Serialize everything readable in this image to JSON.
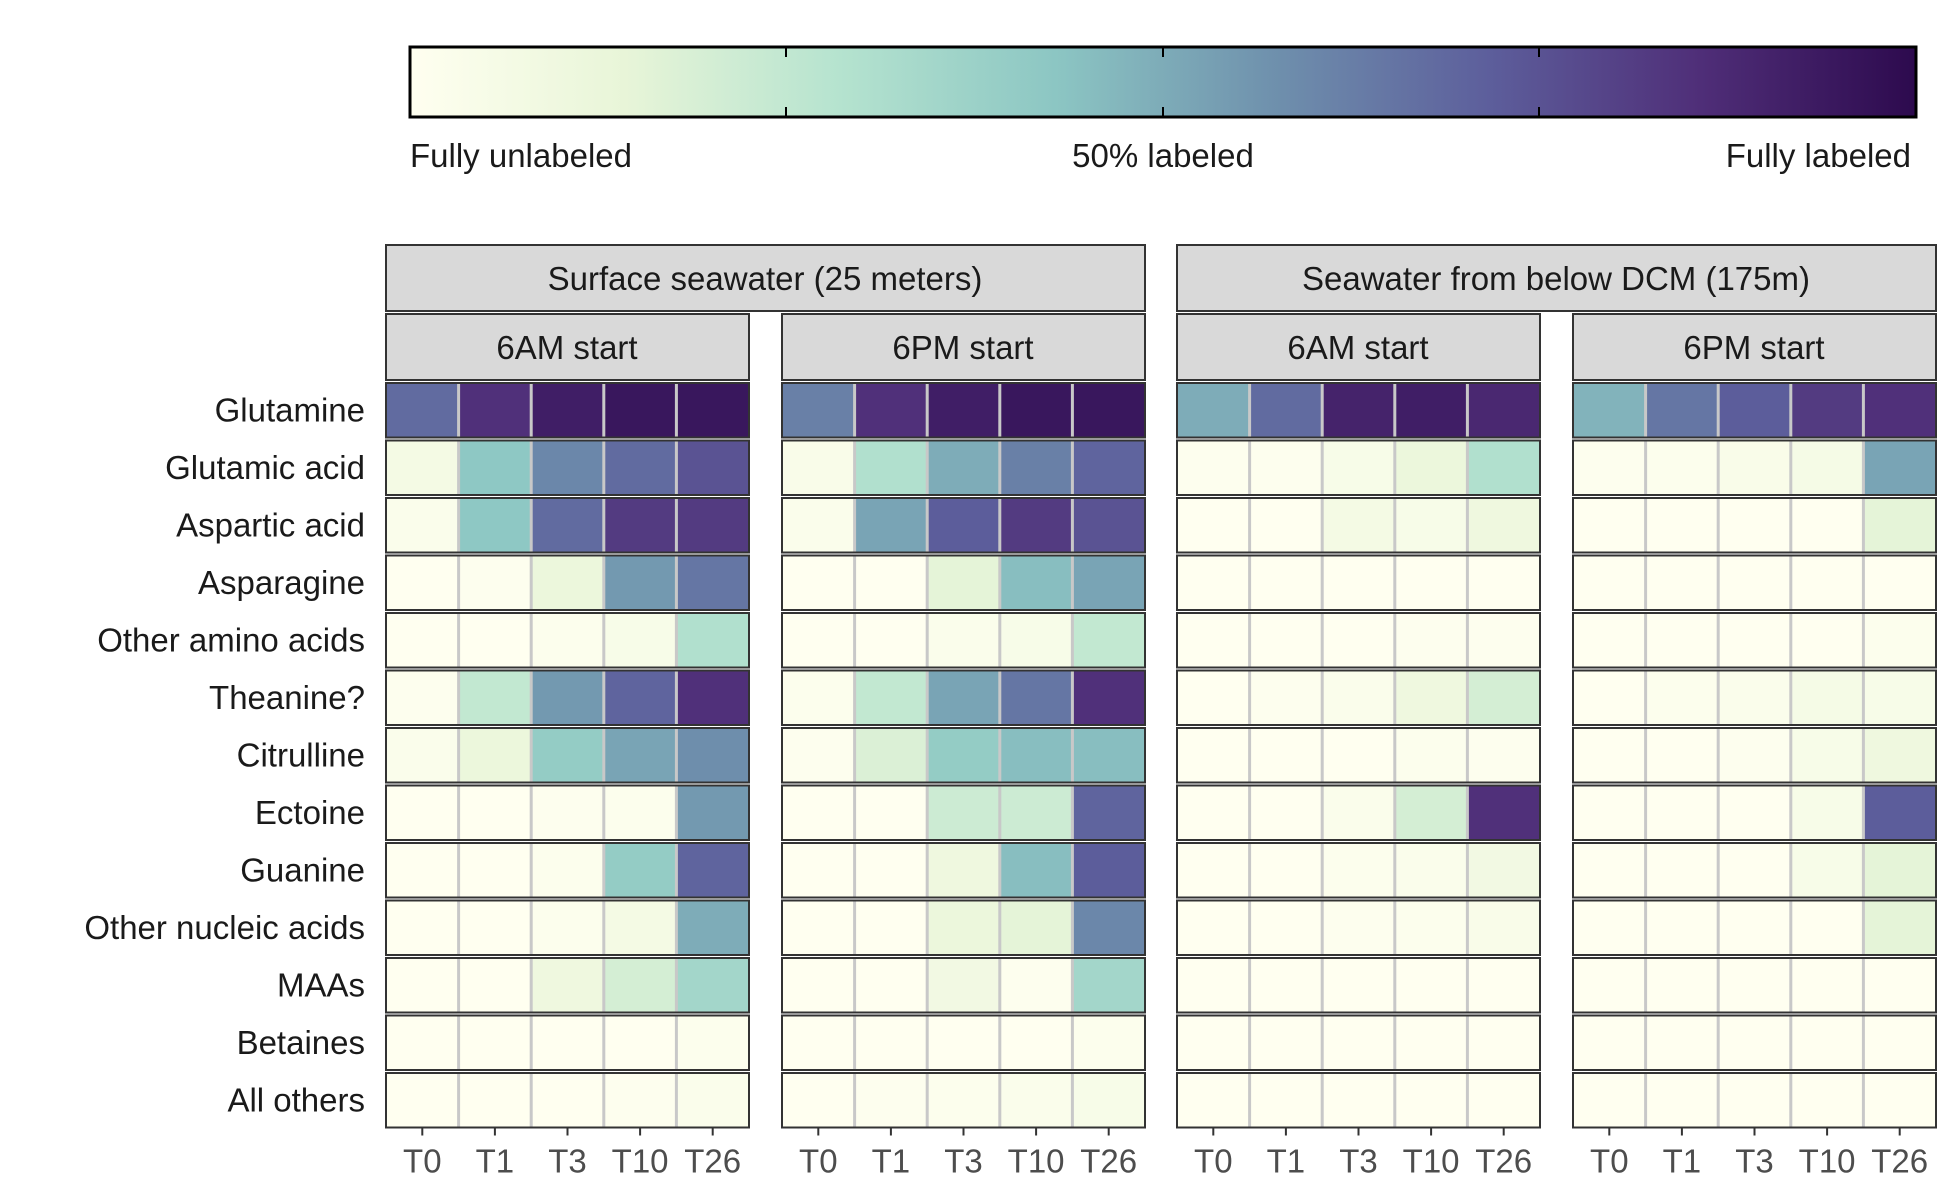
{
  "chart_data": {
    "type": "heatmap",
    "colorbar": {
      "labels": [
        "Fully unlabeled",
        "50% labeled",
        "Fully labeled"
      ],
      "colors": [
        "#fffff0",
        "#e8f5d8",
        "#b5e3cf",
        "#8cc6c3",
        "#6f91ad",
        "#5d5f9c",
        "#4f2e78",
        "#2d0a4e"
      ]
    },
    "panels": [
      {
        "label": "Surface seawater (25 meters)",
        "subpanels": [
          "6AM start",
          "6PM start"
        ]
      },
      {
        "label": "Seawater from below DCM (175m)",
        "subpanels": [
          "6AM start",
          "6PM start"
        ]
      }
    ],
    "timepoints": [
      "T0",
      "T1",
      "T3",
      "T10",
      "T26"
    ],
    "rows": [
      "Glutamine",
      "Glutamic acid",
      "Aspartic acid",
      "Asparagine",
      "Other amino acids",
      "Theanine?",
      "Citrulline",
      "Ectoine",
      "Guanine",
      "Other nucleic acids",
      "MAAs",
      "Betaines",
      "All others"
    ],
    "values": [
      [
        [
          0.68,
          0.85,
          0.92,
          0.95,
          0.95
        ],
        [
          0.07,
          0.42,
          0.6,
          0.68,
          0.75
        ],
        [
          0.03,
          0.42,
          0.68,
          0.82,
          0.82
        ],
        [
          0.0,
          0.01,
          0.12,
          0.55,
          0.65
        ],
        [
          0.0,
          0.0,
          0.02,
          0.05,
          0.3
        ],
        [
          0.01,
          0.25,
          0.55,
          0.7,
          0.85
        ],
        [
          0.03,
          0.12,
          0.4,
          0.52,
          0.58
        ],
        [
          0.0,
          0.0,
          0.01,
          0.02,
          0.55
        ],
        [
          0.0,
          0.0,
          0.02,
          0.4,
          0.7
        ],
        [
          0.0,
          0.0,
          0.02,
          0.07,
          0.5
        ],
        [
          0.0,
          0.0,
          0.1,
          0.2,
          0.35
        ],
        [
          0.0,
          0.0,
          0.0,
          0.0,
          0.02
        ],
        [
          0.0,
          0.0,
          0.0,
          0.01,
          0.03
        ]
      ],
      [
        [
          0.62,
          0.85,
          0.92,
          0.95,
          0.95
        ],
        [
          0.04,
          0.3,
          0.5,
          0.62,
          0.7
        ],
        [
          0.03,
          0.52,
          0.72,
          0.82,
          0.75
        ],
        [
          0.0,
          0.0,
          0.15,
          0.45,
          0.52
        ],
        [
          0.0,
          0.0,
          0.03,
          0.05,
          0.25
        ],
        [
          0.02,
          0.25,
          0.52,
          0.65,
          0.85
        ],
        [
          0.01,
          0.18,
          0.4,
          0.45,
          0.45
        ],
        [
          0.0,
          0.0,
          0.22,
          0.22,
          0.7
        ],
        [
          0.0,
          0.0,
          0.1,
          0.45,
          0.72
        ],
        [
          0.0,
          0.0,
          0.12,
          0.15,
          0.6
        ],
        [
          0.0,
          0.0,
          0.08,
          0.01,
          0.35
        ],
        [
          0.0,
          0.0,
          0.0,
          0.0,
          0.02
        ],
        [
          0.0,
          0.01,
          0.02,
          0.03,
          0.05
        ]
      ],
      [
        [
          0.5,
          0.68,
          0.9,
          0.92,
          0.88
        ],
        [
          0.01,
          0.01,
          0.05,
          0.12,
          0.3
        ],
        [
          0.0,
          0.0,
          0.07,
          0.05,
          0.1
        ],
        [
          0.0,
          0.0,
          0.0,
          0.0,
          0.0
        ],
        [
          0.0,
          0.0,
          0.0,
          0.01,
          0.01
        ],
        [
          0.0,
          0.01,
          0.03,
          0.1,
          0.2
        ],
        [
          0.0,
          0.0,
          0.0,
          0.02,
          0.01
        ],
        [
          0.0,
          0.0,
          0.03,
          0.2,
          0.85
        ],
        [
          0.0,
          0.0,
          0.02,
          0.03,
          0.08
        ],
        [
          0.0,
          0.0,
          0.01,
          0.02,
          0.04
        ],
        [
          0.0,
          0.0,
          0.0,
          0.0,
          0.0
        ],
        [
          0.0,
          0.0,
          0.0,
          0.0,
          0.0
        ],
        [
          0.0,
          0.0,
          0.0,
          0.0,
          0.0
        ]
      ],
      [
        [
          0.48,
          0.65,
          0.72,
          0.82,
          0.85
        ],
        [
          0.01,
          0.02,
          0.04,
          0.06,
          0.52
        ],
        [
          0.0,
          0.0,
          0.0,
          0.0,
          0.15
        ],
        [
          0.0,
          0.0,
          0.0,
          0.0,
          0.0
        ],
        [
          0.0,
          0.0,
          0.0,
          0.0,
          0.02
        ],
        [
          0.0,
          0.02,
          0.03,
          0.06,
          0.05
        ],
        [
          0.0,
          0.0,
          0.01,
          0.05,
          0.1
        ],
        [
          0.0,
          0.0,
          0.0,
          0.05,
          0.72
        ],
        [
          0.0,
          0.0,
          0.0,
          0.05,
          0.15
        ],
        [
          0.0,
          0.0,
          0.0,
          0.0,
          0.15
        ],
        [
          0.0,
          0.0,
          0.0,
          0.0,
          0.0
        ],
        [
          0.0,
          0.0,
          0.0,
          0.0,
          0.0
        ],
        [
          0.0,
          0.0,
          0.0,
          0.0,
          0.0
        ]
      ]
    ]
  }
}
